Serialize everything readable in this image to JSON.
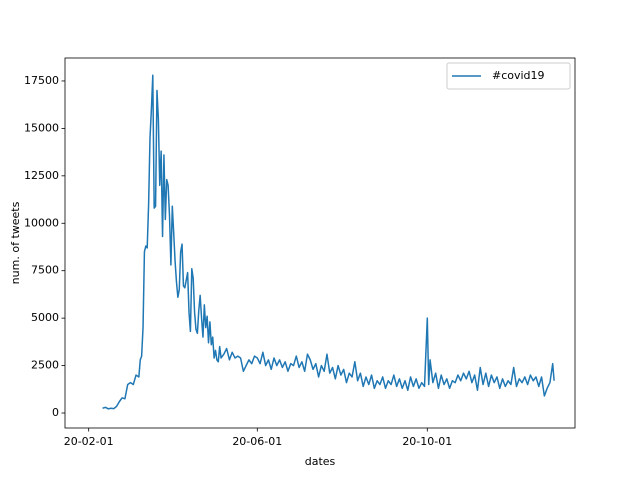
{
  "chart_data": {
    "type": "line",
    "xlabel": "dates",
    "ylabel": "num. of tweets",
    "x": [
      "20-02-11",
      "20-02-13",
      "20-02-15",
      "20-02-17",
      "20-02-19",
      "20-02-21",
      "20-02-23",
      "20-02-25",
      "20-02-27",
      "20-02-29",
      "20-03-02",
      "20-03-04",
      "20-03-06",
      "20-03-08",
      "20-03-09",
      "20-03-10",
      "20-03-11",
      "20-03-12",
      "20-03-13",
      "20-03-14",
      "20-03-15",
      "20-03-16",
      "20-03-17",
      "20-03-18",
      "20-03-19",
      "20-03-20",
      "20-03-21",
      "20-03-22",
      "20-03-23",
      "20-03-24",
      "20-03-25",
      "20-03-26",
      "20-03-27",
      "20-03-28",
      "20-03-29",
      "20-03-30",
      "20-03-31",
      "20-04-01",
      "20-04-02",
      "20-04-03",
      "20-04-04",
      "20-04-05",
      "20-04-06",
      "20-04-07",
      "20-04-08",
      "20-04-09",
      "20-04-10",
      "20-04-11",
      "20-04-12",
      "20-04-13",
      "20-04-14",
      "20-04-15",
      "20-04-16",
      "20-04-17",
      "20-04-18",
      "20-04-19",
      "20-04-20",
      "20-04-21",
      "20-04-22",
      "20-04-23",
      "20-04-24",
      "20-04-25",
      "20-04-26",
      "20-04-27",
      "20-04-28",
      "20-04-29",
      "20-04-30",
      "20-05-01",
      "20-05-02",
      "20-05-03",
      "20-05-04",
      "20-05-05",
      "20-05-06",
      "20-05-08",
      "20-05-10",
      "20-05-12",
      "20-05-14",
      "20-05-16",
      "20-05-18",
      "20-05-20",
      "20-05-22",
      "20-05-24",
      "20-05-26",
      "20-05-28",
      "20-05-30",
      "20-06-01",
      "20-06-03",
      "20-06-05",
      "20-06-07",
      "20-06-09",
      "20-06-11",
      "20-06-13",
      "20-06-15",
      "20-06-17",
      "20-06-19",
      "20-06-21",
      "20-06-23",
      "20-06-25",
      "20-06-27",
      "20-06-29",
      "20-07-01",
      "20-07-03",
      "20-07-05",
      "20-07-07",
      "20-07-09",
      "20-07-11",
      "20-07-13",
      "20-07-15",
      "20-07-17",
      "20-07-19",
      "20-07-21",
      "20-07-23",
      "20-07-25",
      "20-07-27",
      "20-07-29",
      "20-07-31",
      "20-08-02",
      "20-08-04",
      "20-08-06",
      "20-08-08",
      "20-08-10",
      "20-08-12",
      "20-08-14",
      "20-08-16",
      "20-08-18",
      "20-08-20",
      "20-08-22",
      "20-08-24",
      "20-08-26",
      "20-08-28",
      "20-08-30",
      "20-09-01",
      "20-09-03",
      "20-09-05",
      "20-09-07",
      "20-09-09",
      "20-09-11",
      "20-09-13",
      "20-09-15",
      "20-09-17",
      "20-09-19",
      "20-09-21",
      "20-09-23",
      "20-09-25",
      "20-09-27",
      "20-09-29",
      "20-10-01",
      "20-10-02",
      "20-10-03",
      "20-10-05",
      "20-10-07",
      "20-10-09",
      "20-10-11",
      "20-10-13",
      "20-10-15",
      "20-10-17",
      "20-10-19",
      "20-10-21",
      "20-10-23",
      "20-10-25",
      "20-10-27",
      "20-10-29",
      "20-10-31",
      "20-11-02",
      "20-11-04",
      "20-11-06",
      "20-11-08",
      "20-11-10",
      "20-11-12",
      "20-11-14",
      "20-11-16",
      "20-11-18",
      "20-11-20",
      "20-11-22",
      "20-11-24",
      "20-11-26",
      "20-11-28",
      "20-11-30",
      "20-12-02",
      "20-12-04",
      "20-12-06",
      "20-12-08",
      "20-12-10",
      "20-12-12",
      "20-12-14",
      "20-12-16",
      "20-12-18",
      "20-12-20",
      "20-12-22",
      "20-12-24",
      "20-12-26",
      "20-12-28",
      "20-12-30",
      "20-12-31"
    ],
    "series": [
      {
        "name": "#covid19",
        "color": "#1f77b4",
        "values": [
          250,
          300,
          220,
          250,
          230,
          350,
          600,
          800,
          750,
          1500,
          1600,
          1500,
          2000,
          1900,
          2800,
          3000,
          4500,
          8500,
          8800,
          8700,
          11000,
          14500,
          16000,
          17800,
          10800,
          10900,
          17000,
          15500,
          12000,
          13800,
          9300,
          13600,
          10200,
          12300,
          12000,
          10400,
          7800,
          10900,
          9500,
          8000,
          6900,
          6100,
          6500,
          8500,
          8900,
          6700,
          6600,
          7000,
          7400,
          5300,
          4300,
          7600,
          7100,
          5300,
          4400,
          4200,
          5400,
          6200,
          5000,
          4000,
          5700,
          4500,
          5100,
          3700,
          4800,
          3600,
          4000,
          2900,
          3300,
          2800,
          2700,
          3500,
          2900,
          3100,
          3400,
          2800,
          3200,
          2900,
          3000,
          2900,
          2200,
          2500,
          2800,
          2600,
          3000,
          2900,
          2600,
          3200,
          2500,
          2800,
          2300,
          2900,
          2500,
          2800,
          2400,
          2700,
          2200,
          2600,
          2500,
          3000,
          2400,
          2700,
          2200,
          3100,
          2800,
          2300,
          2600,
          1900,
          2500,
          2200,
          3100,
          2100,
          2400,
          1800,
          2500,
          2000,
          2300,
          1600,
          2100,
          1900,
          2700,
          1700,
          2100,
          1400,
          1900,
          1500,
          2000,
          1300,
          1700,
          1500,
          1900,
          1300,
          1700,
          1500,
          2000,
          1400,
          1800,
          1300,
          1700,
          1200,
          1900,
          1400,
          1800,
          1300,
          1600,
          1400,
          5000,
          1500,
          2800,
          1600,
          2100,
          1300,
          2000,
          1500,
          1800,
          1300,
          1700,
          1600,
          2000,
          1700,
          2100,
          1800,
          2200,
          1600,
          2000,
          1200,
          2400,
          1500,
          2100,
          1400,
          2000,
          1600,
          1900,
          1300,
          1800,
          1400,
          1700,
          1500,
          2400,
          1400,
          1800,
          1600,
          1900,
          1500,
          2000,
          1700,
          1900,
          1400,
          1900,
          900,
          1300,
          1600,
          2600,
          1700
        ]
      }
    ],
    "xlim": [
      "20-01-15",
      "21-01-15"
    ],
    "xticks": [
      "20-02-01",
      "20-06-01",
      "20-10-01"
    ],
    "ylim": [
      -790,
      18710
    ],
    "yticks": [
      0,
      2500,
      5000,
      7500,
      10000,
      12500,
      15000,
      17500
    ],
    "legend": "upper right"
  }
}
